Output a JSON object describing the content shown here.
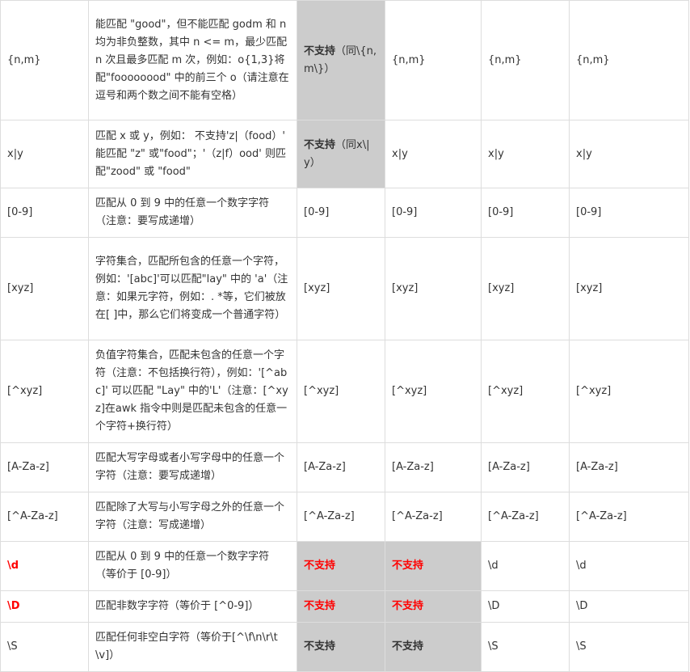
{
  "accent_color": "#ff0000",
  "unsupported_bg": "#cccccc",
  "rows": [
    {
      "c1": "{n,m}",
      "c2": "能匹配 \"good\"，但不能匹配 godm 和 n 均为非负整数，其中 n <= m，最少匹配 n 次且最多匹配 m 次，例如：o{1,3}将配\"foooooood\" 中的前三个 o（请注意在逗号和两个数之间不能有空格）",
      "c3_bold": "不支持",
      "c3_rest": "（同\\{n,m\\}）",
      "c4": "{n,m}",
      "c5": "{n,m}",
      "c6": "{n,m}"
    },
    {
      "c1": "x|y",
      "c2": "匹配 x 或 y，例如： 不支持'z|（food）' 能匹配 \"z\" 或\"food\"；'（z|f）ood' 则匹配\"zood\" 或 \"food\"",
      "c3_bold": "不支持",
      "c3_rest": "（同x\\|y）",
      "c4": "x|y",
      "c5": "x|y",
      "c6": "x|y"
    },
    {
      "c1": "[0-9]",
      "c2": "匹配从 0 到 9 中的任意一个数字字符（注意：要写成递增）",
      "c3": "[0-9]",
      "c4": "[0-9]",
      "c5": "[0-9]",
      "c6": "[0-9]"
    },
    {
      "c1": "[xyz]",
      "c2": "字符集合，匹配所包含的任意一个字符，例如：'[abc]'可以匹配\"lay\" 中的 'a'（注意：如果元字符，例如：. *等，它们被放在[ ]中，那么它们将变成一个普通字符）",
      "c3": "[xyz]",
      "c4": "[xyz]",
      "c5": "[xyz]",
      "c6": "[xyz]"
    },
    {
      "c1": "[^xyz]",
      "c2": "负值字符集合，匹配未包含的任意一个字符（注意：不包括换行符），例如：'[^abc]' 可以匹配 \"Lay\" 中的'L'（注意：[^xyz]在awk 指令中则是匹配未包含的任意一个字符+换行符）",
      "c3": "[^xyz]",
      "c4": "[^xyz]",
      "c5": "[^xyz]",
      "c6": "[^xyz]"
    },
    {
      "c1": "[A-Za-z]",
      "c2": "匹配大写字母或者小写字母中的任意一个字符（注意：要写成递增）",
      "c3": "[A-Za-z]",
      "c4": "[A-Za-z]",
      "c5": "[A-Za-z]",
      "c6": "[A-Za-z]"
    },
    {
      "c1": "[^A-Za-z]",
      "c2": "匹配除了大写与小写字母之外的任意一个字符（注意：写成递增）",
      "c3": "[^A-Za-z]",
      "c4": "[^A-Za-z]",
      "c5": "[^A-Za-z]",
      "c6": "[^A-Za-z]"
    },
    {
      "c1": "\\d",
      "c2": "匹配从 0 到 9 中的任意一个数字字符（等价于 [0-9]）",
      "c3": "不支持",
      "c4": "不支持",
      "c5": "\\d",
      "c6": "\\d"
    },
    {
      "c1": "\\D",
      "c2": "匹配非数字字符（等价于 [^0-9]）",
      "c3": "不支持",
      "c4": "不支持",
      "c5": "\\D",
      "c6": "\\D"
    },
    {
      "c1": "\\S",
      "c2": "匹配任何非空白字符（等价于[^\\f\\n\\r\\t\\v]）",
      "c3": "不支持",
      "c4": "不支持",
      "c5": "\\S",
      "c6": "\\S"
    }
  ]
}
